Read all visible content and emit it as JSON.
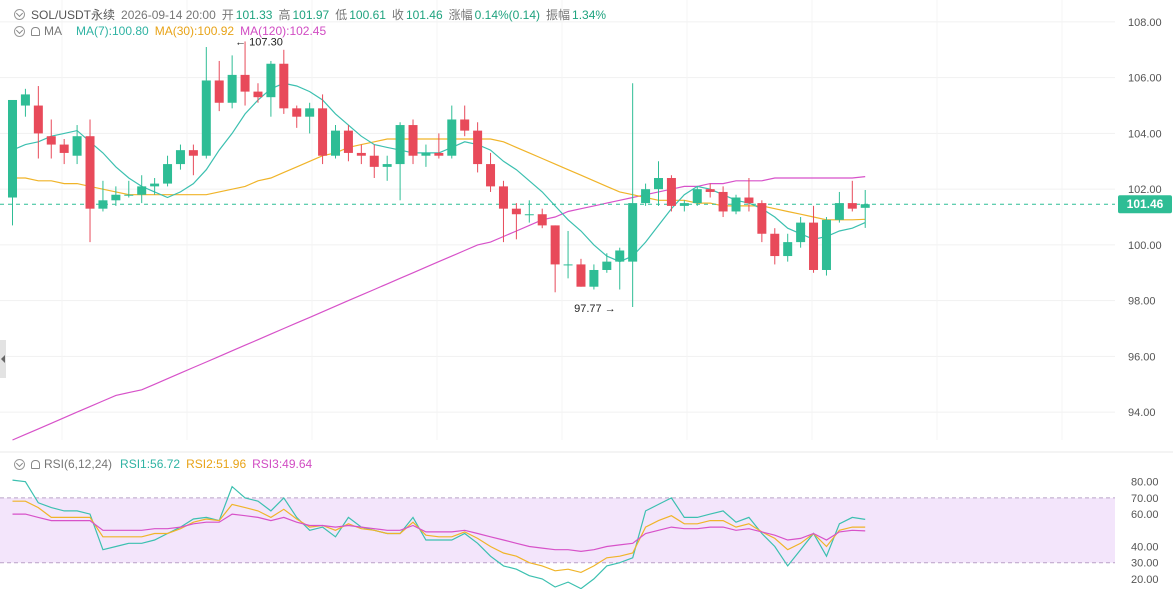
{
  "header": {
    "symbol": "SOL/USDT永续",
    "datetime": "2026-09-14 20:00",
    "open_label": "开",
    "open": "101.33",
    "high_label": "高",
    "high": "101.97",
    "low_label": "低",
    "low": "100.61",
    "close_label": "收",
    "close": "101.46",
    "change_label": "涨幅",
    "change": "0.14%(0.14)",
    "amplitude_label": "振幅",
    "amplitude": "1.34%"
  },
  "ma_legend": {
    "label": "MA",
    "ma7": "MA(7):100.80",
    "ma30": "MA(30):100.92",
    "ma120": "MA(120):102.45"
  },
  "rsi_legend": {
    "label": "RSI(6,12,24)",
    "rsi1": "RSI1:56.72",
    "rsi2": "RSI2:51.96",
    "rsi3": "RSI3:49.64"
  },
  "colors": {
    "up": "#2ebd95",
    "down": "#e84a5a",
    "ma7": "#3cc0b0",
    "ma30": "#f0b429",
    "ma120": "#d752c9",
    "rsi_band": "#f3e5fb",
    "price_tag": "#2ebd95"
  },
  "chart_data": [
    {
      "type": "candlestick",
      "ylim": [
        93,
        108.5
      ],
      "y_ticks": [
        "108.00",
        "106.00",
        "104.00",
        "102.00",
        "100.00",
        "98.00",
        "96.00",
        "94.00"
      ],
      "last_price": "101.46",
      "annotations": [
        {
          "text": "107.30",
          "value": 107.3,
          "candle": 17,
          "arrow": "←"
        },
        {
          "text": "97.77",
          "value": 97.77,
          "candle": 47,
          "arrow": "→"
        }
      ],
      "candles": [
        [
          101.7,
          105.2,
          103.5,
          100.7
        ],
        [
          105.0,
          105.4,
          105.6,
          104.6
        ],
        [
          105.0,
          104.0,
          105.7,
          103.1
        ],
        [
          103.9,
          103.6,
          104.5,
          103.1
        ],
        [
          103.6,
          103.3,
          103.8,
          102.9
        ],
        [
          103.2,
          103.9,
          104.3,
          102.9
        ],
        [
          103.9,
          101.3,
          104.5,
          100.1
        ],
        [
          101.3,
          101.6,
          102.3,
          101.2
        ],
        [
          101.6,
          101.8,
          102.1,
          101.4
        ],
        [
          101.8,
          101.8,
          102.3,
          101.7
        ],
        [
          101.8,
          102.1,
          102.5,
          101.5
        ],
        [
          102.1,
          102.2,
          102.4,
          101.8
        ],
        [
          102.2,
          102.9,
          103.2,
          102.1
        ],
        [
          102.9,
          103.4,
          103.6,
          102.7
        ],
        [
          103.4,
          103.2,
          103.6,
          102.5
        ],
        [
          103.2,
          105.9,
          107.1,
          103.1
        ],
        [
          105.9,
          105.1,
          106.6,
          104.8
        ],
        [
          105.1,
          106.1,
          106.8,
          104.9
        ],
        [
          106.1,
          105.5,
          107.3,
          105.0
        ],
        [
          105.5,
          105.3,
          105.8,
          105.1
        ],
        [
          105.3,
          106.5,
          106.6,
          104.6
        ],
        [
          106.5,
          104.9,
          107.0,
          104.7
        ],
        [
          104.9,
          104.6,
          105.0,
          104.2
        ],
        [
          104.6,
          104.9,
          105.1,
          104.0
        ],
        [
          104.9,
          103.2,
          105.4,
          102.9
        ],
        [
          103.2,
          104.1,
          104.3,
          103.1
        ],
        [
          104.1,
          103.3,
          104.3,
          103.0
        ],
        [
          103.3,
          103.2,
          103.6,
          102.9
        ],
        [
          103.2,
          102.8,
          103.6,
          102.4
        ],
        [
          102.8,
          102.9,
          103.2,
          102.3
        ],
        [
          102.9,
          104.3,
          104.4,
          101.6
        ],
        [
          104.3,
          103.2,
          104.5,
          102.9
        ],
        [
          103.2,
          103.3,
          103.6,
          102.8
        ],
        [
          103.3,
          103.2,
          104.0,
          103.1
        ],
        [
          103.2,
          104.5,
          105.0,
          103.1
        ],
        [
          104.5,
          104.1,
          105.0,
          103.9
        ],
        [
          104.1,
          102.9,
          104.4,
          102.6
        ],
        [
          102.9,
          102.1,
          103.3,
          101.9
        ],
        [
          102.1,
          101.3,
          102.3,
          100.1
        ],
        [
          101.3,
          101.1,
          101.5,
          100.2
        ],
        [
          101.1,
          101.1,
          101.6,
          100.8
        ],
        [
          101.1,
          100.7,
          101.3,
          100.6
        ],
        [
          100.7,
          99.3,
          100.7,
          98.3
        ],
        [
          99.3,
          99.3,
          100.5,
          98.8
        ],
        [
          99.3,
          98.5,
          99.5,
          98.5
        ],
        [
          98.5,
          99.1,
          99.3,
          98.4
        ],
        [
          99.1,
          99.4,
          99.7,
          99.0
        ],
        [
          99.4,
          99.8,
          99.9,
          98.4
        ],
        [
          99.4,
          101.5,
          105.8,
          97.77
        ],
        [
          101.5,
          102.0,
          102.2,
          101.4
        ],
        [
          102.0,
          102.4,
          103.0,
          101.4
        ],
        [
          102.4,
          101.4,
          102.5,
          101.2
        ],
        [
          101.4,
          101.5,
          101.6,
          101.2
        ],
        [
          101.5,
          102.0,
          102.1,
          101.4
        ],
        [
          102.0,
          101.9,
          102.2,
          101.7
        ],
        [
          101.9,
          101.2,
          102.1,
          101.0
        ],
        [
          101.2,
          101.7,
          101.8,
          101.1
        ],
        [
          101.7,
          101.5,
          102.4,
          101.2
        ],
        [
          101.5,
          100.4,
          101.6,
          100.1
        ],
        [
          100.4,
          99.6,
          100.6,
          99.3
        ],
        [
          99.6,
          100.1,
          100.4,
          99.4
        ],
        [
          100.1,
          100.8,
          101.0,
          99.9
        ],
        [
          100.8,
          99.1,
          101.4,
          99.0
        ],
        [
          99.1,
          100.9,
          101.0,
          98.9
        ],
        [
          100.9,
          101.5,
          101.9,
          100.8
        ],
        [
          101.5,
          101.3,
          102.3,
          101.2
        ],
        [
          101.33,
          101.46,
          101.97,
          100.61
        ]
      ],
      "ma7": [
        103.4,
        103.6,
        103.7,
        103.9,
        104.0,
        104.1,
        103.7,
        103.3,
        102.8,
        102.4,
        102.1,
        101.9,
        101.7,
        101.9,
        102.2,
        102.7,
        103.4,
        104.0,
        104.7,
        105.2,
        105.6,
        105.8,
        105.7,
        105.5,
        105.2,
        104.7,
        104.3,
        103.9,
        103.6,
        103.5,
        103.4,
        103.3,
        103.3,
        103.3,
        103.5,
        103.7,
        103.6,
        103.4,
        103.0,
        102.7,
        102.3,
        101.9,
        101.4,
        100.9,
        100.5,
        100.0,
        99.6,
        99.4,
        99.6,
        100.1,
        100.7,
        101.3,
        101.8,
        102.1,
        102.0,
        101.8,
        101.6,
        101.5,
        101.3,
        101.0,
        100.6,
        100.4,
        100.2,
        100.3,
        100.5,
        100.6,
        100.8
      ],
      "ma30": [
        102.4,
        102.4,
        102.3,
        102.3,
        102.2,
        102.2,
        102.1,
        102.0,
        101.9,
        101.8,
        101.8,
        101.8,
        101.8,
        101.8,
        101.8,
        101.8,
        101.9,
        102.0,
        102.1,
        102.3,
        102.4,
        102.6,
        102.8,
        103.0,
        103.2,
        103.3,
        103.5,
        103.6,
        103.7,
        103.8,
        103.8,
        103.8,
        103.8,
        103.8,
        103.8,
        103.8,
        103.8,
        103.8,
        103.7,
        103.5,
        103.3,
        103.1,
        102.9,
        102.7,
        102.5,
        102.3,
        102.1,
        101.9,
        101.8,
        101.7,
        101.6,
        101.6,
        101.6,
        101.5,
        101.5,
        101.4,
        101.4,
        101.4,
        101.4,
        101.3,
        101.2,
        101.1,
        101.0,
        100.9,
        100.9,
        100.9,
        100.92
      ],
      "ma120": [
        93.0,
        93.2,
        93.4,
        93.6,
        93.8,
        94.0,
        94.2,
        94.4,
        94.6,
        94.7,
        94.8,
        95.0,
        95.2,
        95.4,
        95.6,
        95.8,
        96.0,
        96.2,
        96.4,
        96.6,
        96.8,
        97.0,
        97.2,
        97.4,
        97.6,
        97.8,
        98.0,
        98.2,
        98.4,
        98.6,
        98.8,
        99.0,
        99.2,
        99.4,
        99.6,
        99.8,
        100.0,
        100.1,
        100.3,
        100.5,
        100.7,
        100.9,
        101.0,
        101.2,
        101.3,
        101.4,
        101.5,
        101.6,
        101.7,
        101.8,
        101.9,
        102.0,
        102.1,
        102.1,
        102.2,
        102.2,
        102.3,
        102.3,
        102.3,
        102.4,
        102.4,
        102.4,
        102.4,
        102.4,
        102.4,
        102.4,
        102.45
      ]
    },
    {
      "type": "line",
      "ylim": [
        15,
        86
      ],
      "y_ticks": [
        "80.00",
        "70.00",
        "60.00",
        "40.00",
        "30.00",
        "20.00"
      ],
      "band": [
        30,
        70
      ],
      "series": [
        {
          "name": "RSI1",
          "values": [
            81,
            80,
            67,
            64,
            62,
            62,
            60,
            38,
            40,
            42,
            42,
            44,
            48,
            52,
            57,
            58,
            56,
            77,
            70,
            68,
            62,
            70,
            58,
            50,
            52,
            46,
            58,
            52,
            50,
            48,
            48,
            58,
            44,
            44,
            44,
            48,
            42,
            34,
            28,
            26,
            22,
            20,
            15,
            18,
            14,
            20,
            28,
            30,
            33,
            62,
            66,
            70,
            58,
            58,
            60,
            62,
            55,
            58,
            48,
            40,
            28,
            38,
            48,
            34,
            54,
            58,
            56.72
          ]
        },
        {
          "name": "RSI2",
          "values": [
            68,
            68,
            64,
            58,
            58,
            58,
            58,
            46,
            46,
            46,
            46,
            48,
            48,
            51,
            55,
            57,
            56,
            66,
            64,
            62,
            58,
            63,
            57,
            52,
            53,
            50,
            54,
            51,
            50,
            48,
            48,
            55,
            47,
            46,
            46,
            49,
            45,
            40,
            36,
            34,
            30,
            28,
            25,
            26,
            24,
            28,
            33,
            34,
            36,
            52,
            56,
            59,
            54,
            54,
            56,
            56,
            52,
            54,
            49,
            45,
            38,
            42,
            48,
            40,
            50,
            52,
            51.96
          ]
        },
        {
          "name": "RSI3",
          "values": [
            60,
            60,
            58,
            56,
            56,
            56,
            56,
            50,
            50,
            50,
            50,
            51,
            51,
            52,
            54,
            55,
            55,
            60,
            59,
            58,
            56,
            58,
            55,
            53,
            53,
            52,
            53,
            52,
            51,
            50,
            50,
            53,
            49,
            49,
            49,
            50,
            48,
            46,
            44,
            42,
            40,
            39,
            38,
            38,
            37,
            38,
            40,
            41,
            42,
            48,
            50,
            52,
            51,
            51,
            52,
            52,
            50,
            51,
            49,
            47,
            44,
            45,
            48,
            44,
            49,
            50,
            49.64
          ]
        }
      ]
    }
  ]
}
